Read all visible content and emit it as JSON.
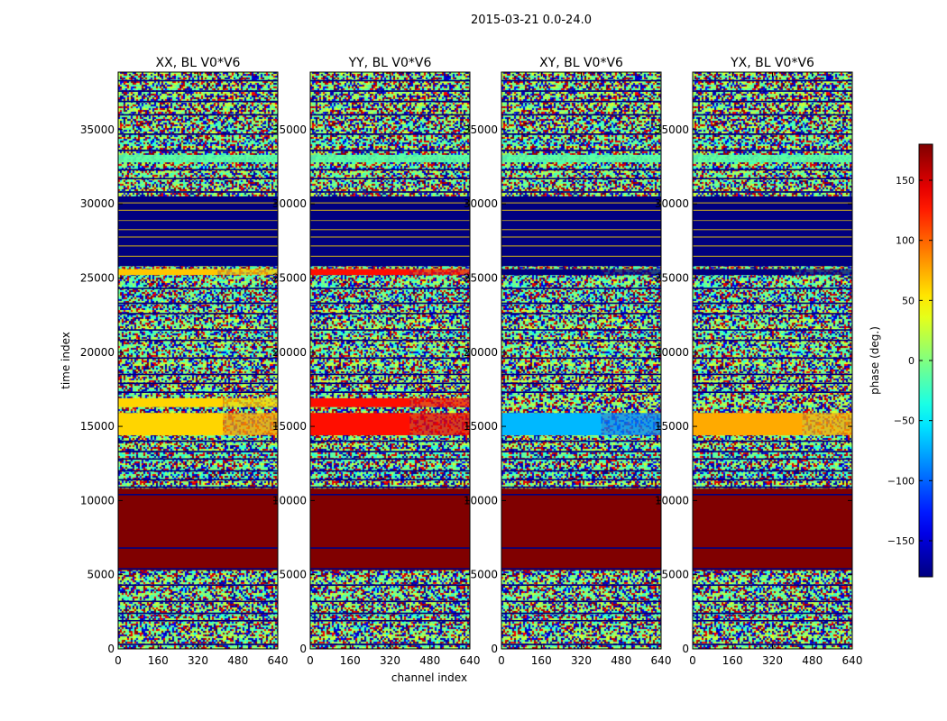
{
  "chart_data": {
    "type": "heatmap",
    "title": "2015-03-21 0.0-24.0",
    "xlabel": "channel index",
    "ylabel": "time index",
    "xlim": [
      0,
      640
    ],
    "ylim": [
      0,
      38880
    ],
    "xticks": [
      0,
      160,
      320,
      480,
      640
    ],
    "yticks": [
      0,
      5000,
      10000,
      15000,
      20000,
      25000,
      30000,
      35000
    ],
    "panels": [
      {
        "title": "XX, BL V0*V6",
        "bands": [
          {
            "from": 5300,
            "to": 10800,
            "phase": 180
          },
          {
            "from": 14400,
            "to": 15900,
            "phase": 60,
            "right_phase": 80,
            "split_channel": 420
          },
          {
            "from": 16300,
            "to": 16900,
            "phase": 60,
            "right_phase": 60,
            "split_channel": 420
          },
          {
            "from": 25200,
            "to": 25600,
            "phase": 65,
            "right_phase": 65,
            "split_channel": 400
          },
          {
            "from": 25800,
            "to": 30500,
            "phase": -180
          }
        ]
      },
      {
        "title": "YY, BL V0*V6",
        "bands": [
          {
            "from": 5300,
            "to": 10800,
            "phase": 180
          },
          {
            "from": 14400,
            "to": 15900,
            "phase": 130,
            "right_phase": 140,
            "split_channel": 400
          },
          {
            "from": 16300,
            "to": 16900,
            "phase": 130,
            "right_phase": 130,
            "split_channel": 400
          },
          {
            "from": 25200,
            "to": 25600,
            "phase": 130,
            "right_phase": 130,
            "split_channel": 400
          },
          {
            "from": 25800,
            "to": 30500,
            "phase": -180
          }
        ]
      },
      {
        "title": "XY, BL V0*V6",
        "bands": [
          {
            "from": 5300,
            "to": 10800,
            "phase": 180
          },
          {
            "from": 14400,
            "to": 15900,
            "phase": -70,
            "right_phase": -90,
            "split_channel": 400
          },
          {
            "from": 25200,
            "to": 25600,
            "phase": -180,
            "right_phase": -180,
            "split_channel": 400
          },
          {
            "from": 25800,
            "to": 30500,
            "phase": -180
          }
        ]
      },
      {
        "title": "YX, BL V0*V6",
        "bands": [
          {
            "from": 5300,
            "to": 10800,
            "phase": 180
          },
          {
            "from": 14400,
            "to": 15900,
            "phase": 75,
            "right_phase": 75,
            "split_channel": 440
          },
          {
            "from": 25200,
            "to": 25600,
            "phase": -180,
            "right_phase": -180,
            "split_channel": 400
          },
          {
            "from": 25800,
            "to": 30500,
            "phase": -180
          }
        ]
      }
    ],
    "colorbar": {
      "label": "phase (deg.)",
      "range": [
        -180,
        180
      ],
      "ticks": [
        -150,
        -100,
        -50,
        0,
        50,
        100,
        150
      ],
      "tick_labels": [
        "−150",
        "−100",
        "−50",
        "0",
        "50",
        "100",
        "150"
      ],
      "colormap": "jet"
    }
  }
}
